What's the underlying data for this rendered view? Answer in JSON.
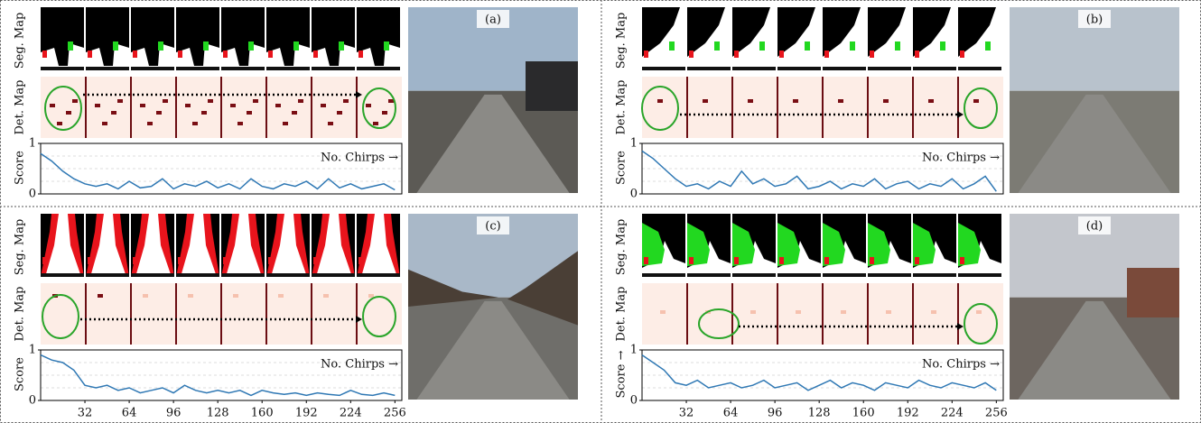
{
  "chart_data": [
    {
      "type": "line",
      "panel_label": "(a)",
      "row_labels": [
        "Seg. Map",
        "Det. Map"
      ],
      "y_label": "Score",
      "annotation": "No. Chirps →",
      "x": [
        0,
        8,
        16,
        24,
        32,
        40,
        48,
        56,
        64,
        72,
        80,
        88,
        96,
        104,
        112,
        120,
        128,
        136,
        144,
        152,
        160,
        168,
        176,
        184,
        192,
        200,
        208,
        216,
        224,
        232,
        240,
        248,
        256
      ],
      "values": [
        0.8,
        0.65,
        0.45,
        0.3,
        0.2,
        0.15,
        0.2,
        0.1,
        0.25,
        0.12,
        0.15,
        0.3,
        0.1,
        0.2,
        0.15,
        0.25,
        0.12,
        0.2,
        0.1,
        0.3,
        0.15,
        0.1,
        0.2,
        0.15,
        0.25,
        0.1,
        0.3,
        0.12,
        0.2,
        0.1,
        0.15,
        0.2,
        0.08
      ],
      "color": "#2f78b4",
      "xlim": [
        0,
        261
      ],
      "ylim": [
        0,
        1
      ],
      "yticks": [
        0,
        1
      ],
      "grid": true
    },
    {
      "type": "line",
      "panel_label": "(b)",
      "row_labels": [
        "Seg. Map",
        "Det. Map"
      ],
      "y_label": "Score",
      "annotation": "No. Chirps →",
      "x": [
        0,
        8,
        16,
        24,
        32,
        40,
        48,
        56,
        64,
        72,
        80,
        88,
        96,
        104,
        112,
        120,
        128,
        136,
        144,
        152,
        160,
        168,
        176,
        184,
        192,
        200,
        208,
        216,
        224,
        232,
        240,
        248,
        256
      ],
      "values": [
        0.85,
        0.7,
        0.5,
        0.3,
        0.15,
        0.2,
        0.1,
        0.25,
        0.15,
        0.45,
        0.2,
        0.3,
        0.15,
        0.2,
        0.35,
        0.1,
        0.15,
        0.25,
        0.1,
        0.2,
        0.15,
        0.3,
        0.1,
        0.2,
        0.25,
        0.1,
        0.2,
        0.15,
        0.3,
        0.1,
        0.2,
        0.35,
        0.05
      ],
      "color": "#2f78b4",
      "xlim": [
        0,
        261
      ],
      "ylim": [
        0,
        1
      ],
      "yticks": [
        0,
        1
      ],
      "grid": true
    },
    {
      "type": "line",
      "panel_label": "(c)",
      "row_labels": [
        "Seg. Map",
        "Det. Map"
      ],
      "y_label": "Score",
      "annotation": "No. Chirps →",
      "x": [
        0,
        8,
        16,
        24,
        32,
        40,
        48,
        56,
        64,
        72,
        80,
        88,
        96,
        104,
        112,
        120,
        128,
        136,
        144,
        152,
        160,
        168,
        176,
        184,
        192,
        200,
        208,
        216,
        224,
        232,
        240,
        248,
        256
      ],
      "values": [
        0.9,
        0.8,
        0.75,
        0.6,
        0.3,
        0.25,
        0.3,
        0.2,
        0.25,
        0.15,
        0.2,
        0.25,
        0.15,
        0.3,
        0.2,
        0.15,
        0.2,
        0.15,
        0.2,
        0.1,
        0.2,
        0.15,
        0.12,
        0.15,
        0.1,
        0.15,
        0.12,
        0.1,
        0.2,
        0.12,
        0.1,
        0.15,
        0.1
      ],
      "color": "#2f78b4",
      "xlim": [
        0,
        261
      ],
      "ylim": [
        0,
        1
      ],
      "yticks": [
        0,
        1
      ],
      "xticks": [
        32,
        64,
        96,
        128,
        160,
        192,
        224,
        256
      ],
      "grid": true
    },
    {
      "type": "line",
      "panel_label": "(d)",
      "row_labels": [
        "Seg. Map",
        "Det. Map"
      ],
      "y_label": "Score →",
      "annotation": "No. Chirps →",
      "x": [
        0,
        8,
        16,
        24,
        32,
        40,
        48,
        56,
        64,
        72,
        80,
        88,
        96,
        104,
        112,
        120,
        128,
        136,
        144,
        152,
        160,
        168,
        176,
        184,
        192,
        200,
        208,
        216,
        224,
        232,
        240,
        248,
        256
      ],
      "values": [
        0.9,
        0.75,
        0.6,
        0.35,
        0.3,
        0.4,
        0.25,
        0.3,
        0.35,
        0.25,
        0.3,
        0.4,
        0.25,
        0.3,
        0.35,
        0.2,
        0.3,
        0.4,
        0.25,
        0.35,
        0.3,
        0.2,
        0.35,
        0.3,
        0.25,
        0.4,
        0.3,
        0.25,
        0.35,
        0.3,
        0.25,
        0.35,
        0.2
      ],
      "color": "#2f78b4",
      "xlim": [
        0,
        261
      ],
      "ylim": [
        0,
        1
      ],
      "yticks": [
        0,
        1
      ],
      "xticks": [
        32,
        64,
        96,
        128,
        160,
        192,
        224,
        256
      ],
      "grid": true
    }
  ]
}
